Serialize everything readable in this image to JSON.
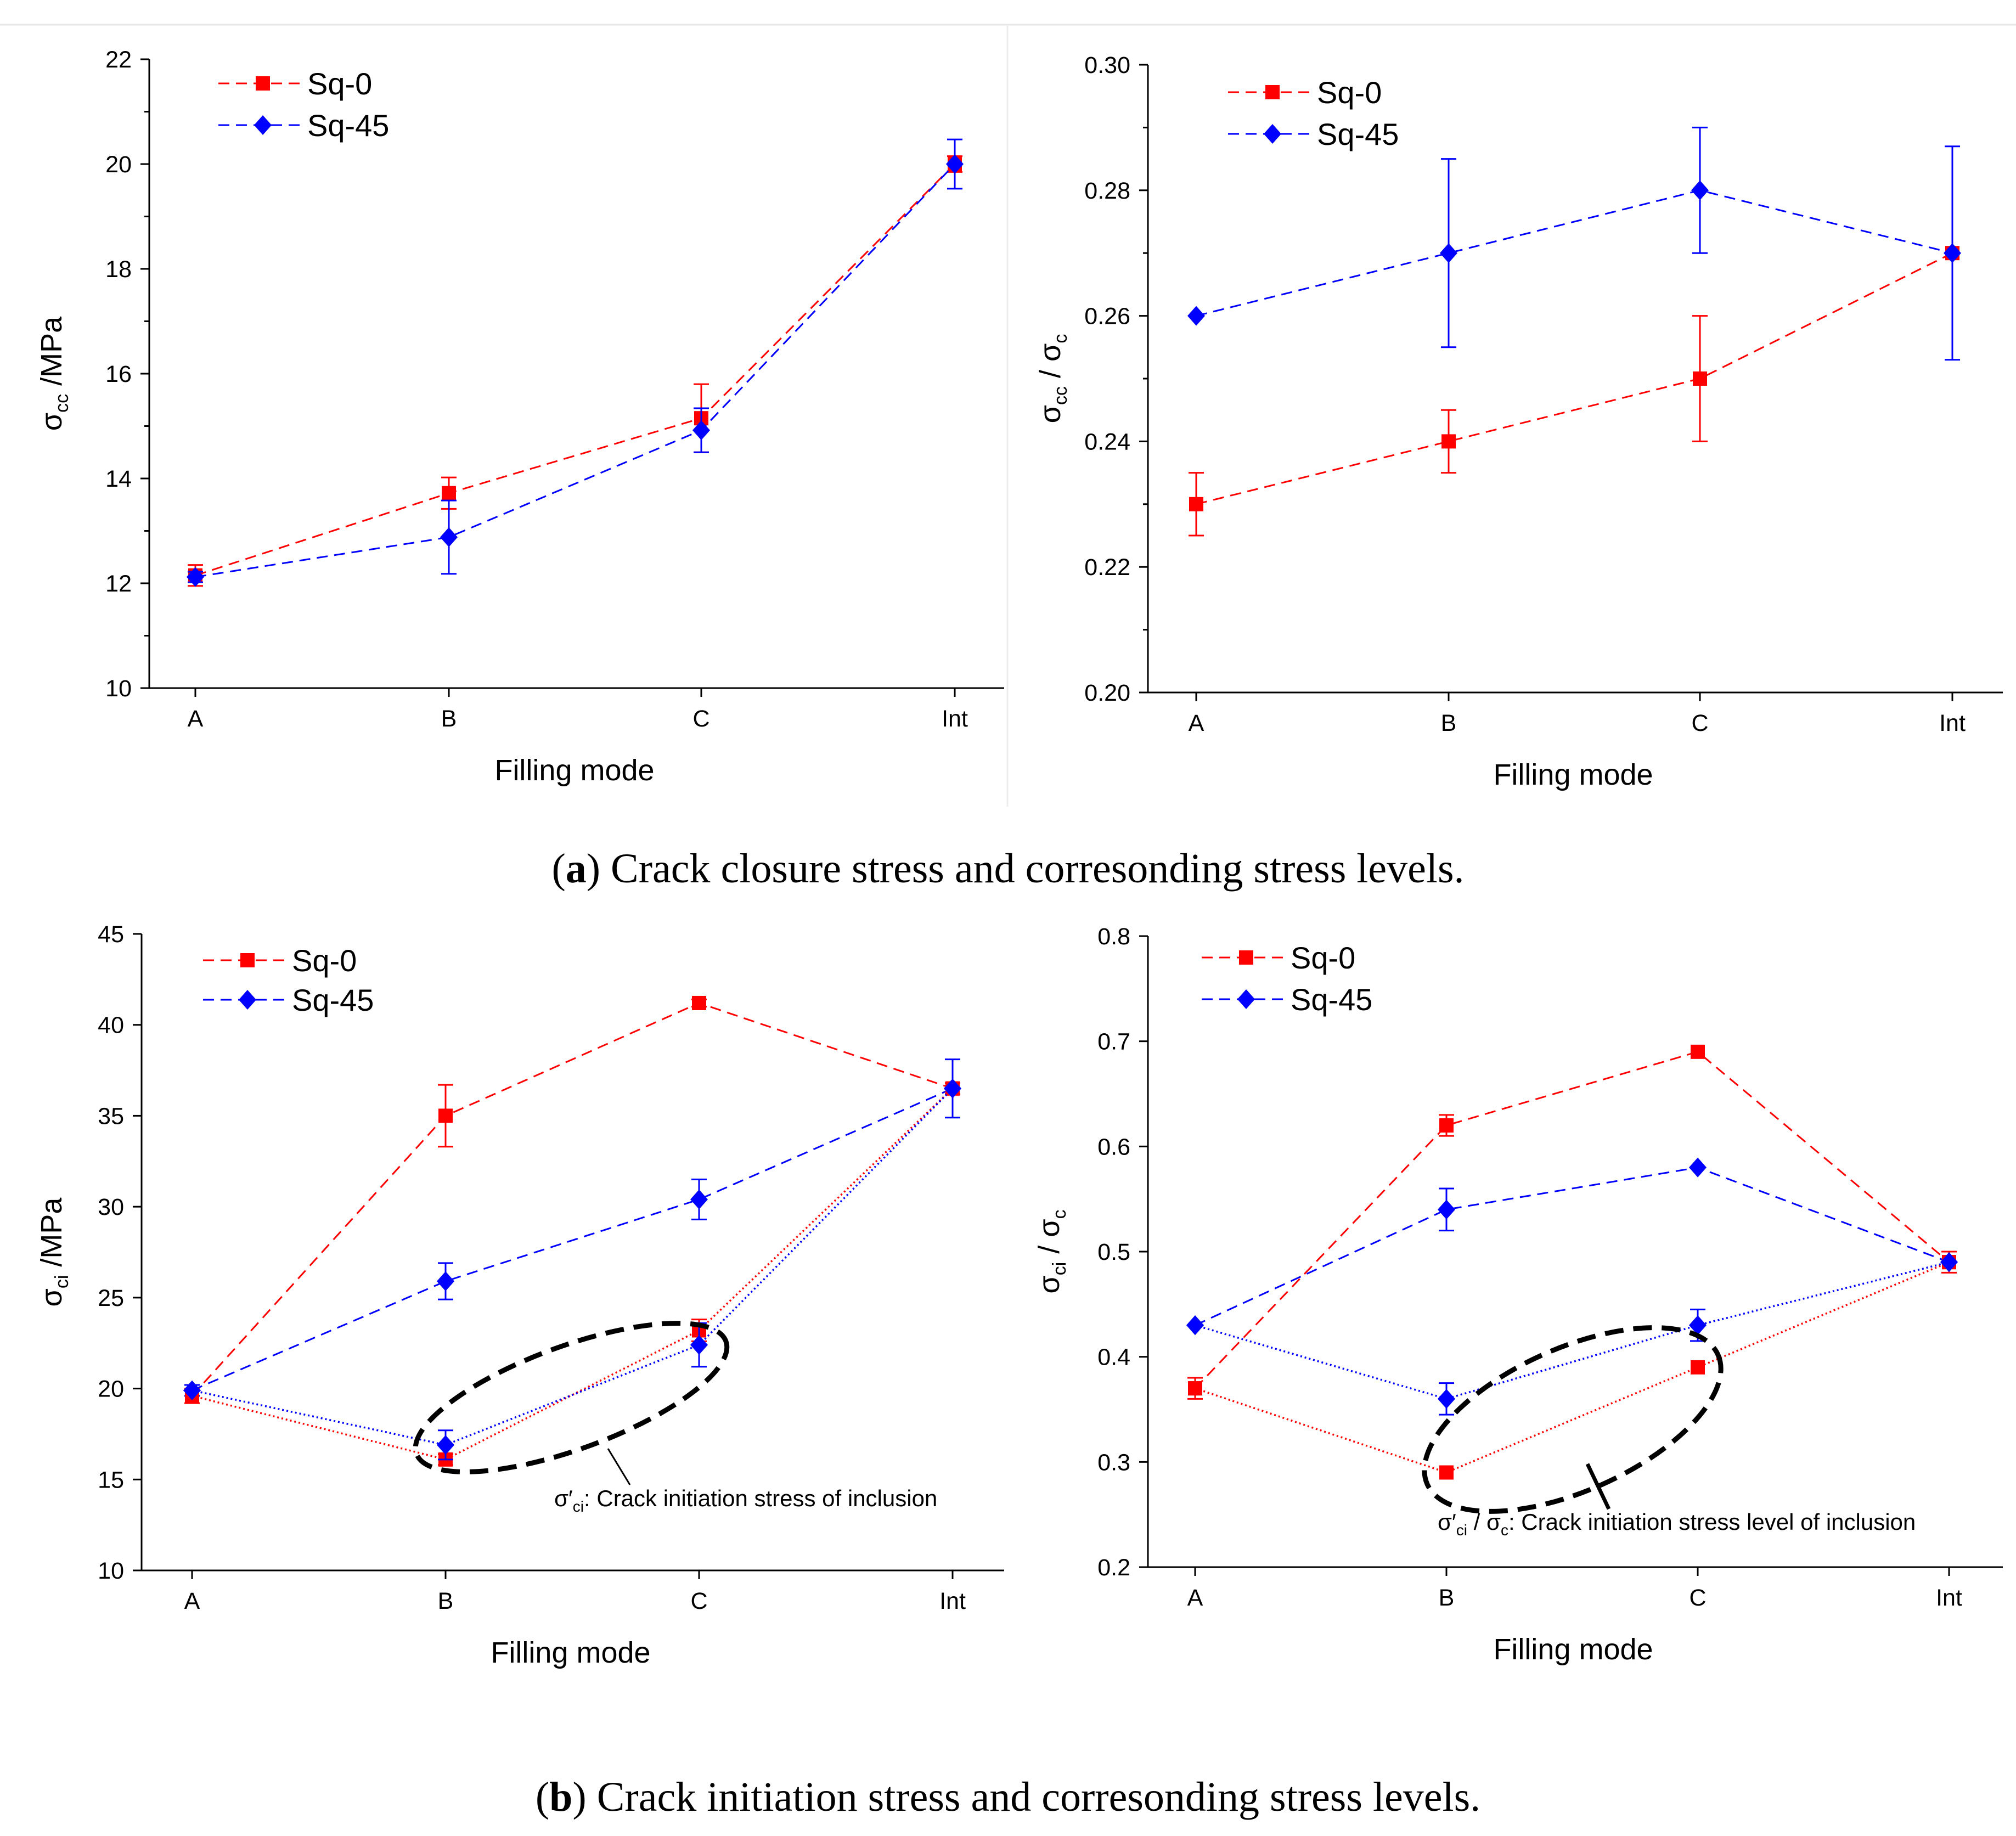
{
  "colors": {
    "Sq-0": "#ff0000",
    "Sq-45": "#0000ff"
  },
  "captions": {
    "a": {
      "letter": "a",
      "text": ") Crack closure stress and corresonding stress levels."
    },
    "b": {
      "letter": "b",
      "text": ") Crack initiation stress and corresonding stress levels."
    }
  },
  "chart_data": [
    {
      "id": "a-left",
      "type": "line",
      "categories": [
        "A",
        "B",
        "C",
        "Int"
      ],
      "xlabel": "Filling mode",
      "ylabel": {
        "main": "σ",
        "sub": "cc",
        "rest": " /MPa"
      },
      "ylim": [
        10,
        22
      ],
      "yticks": [
        "10",
        "12",
        "14",
        "16",
        "18",
        "20",
        "22"
      ],
      "legend_position": "top-left",
      "series": [
        {
          "name": "Sq-0",
          "values": [
            12.15,
            13.72,
            15.15,
            20.0
          ],
          "errors": [
            0.2,
            0.3,
            0.65,
            0.15
          ],
          "style": "dashed",
          "marker": "square",
          "show_in_legend": true
        },
        {
          "name": "Sq-45",
          "values": [
            12.12,
            12.88,
            14.92,
            20.0
          ],
          "errors": [
            0.1,
            0.7,
            0.42,
            0.47
          ],
          "style": "dashed",
          "marker": "diamond",
          "show_in_legend": true
        }
      ],
      "annotation": null
    },
    {
      "id": "a-right",
      "type": "line",
      "categories": [
        "A",
        "B",
        "C",
        "Int"
      ],
      "xlabel": "Filling mode",
      "ylabel": {
        "main": "σ",
        "sub": "cc",
        "rest": " / σ",
        "sub2": "c"
      },
      "ylim": [
        0.2,
        0.3
      ],
      "yticks": [
        "0.20",
        "0.22",
        "0.24",
        "0.26",
        "0.28",
        "0.30"
      ],
      "legend_position": "top-left",
      "series": [
        {
          "name": "Sq-0",
          "values": [
            0.23,
            0.24,
            0.25,
            0.27
          ],
          "errors": [
            0.005,
            0.005,
            0.01,
            0.0
          ],
          "style": "dashed",
          "marker": "square",
          "show_in_legend": true
        },
        {
          "name": "Sq-45",
          "values": [
            0.26,
            0.27,
            0.28,
            0.27
          ],
          "errors": [
            0.0,
            0.015,
            0.01,
            0.017
          ],
          "style": "dashed",
          "marker": "diamond",
          "show_in_legend": true
        }
      ],
      "annotation": null
    },
    {
      "id": "b-left",
      "type": "line",
      "categories": [
        "A",
        "B",
        "C",
        "Int"
      ],
      "xlabel": "Filling mode",
      "ylabel": {
        "main": "σ",
        "sub": "ci",
        "rest": " /MPa"
      },
      "ylim": [
        10,
        45
      ],
      "yticks": [
        "10",
        "15",
        "20",
        "25",
        "30",
        "35",
        "40",
        "45"
      ],
      "legend_position": "top-left",
      "series": [
        {
          "name": "Sq-0",
          "values": [
            19.6,
            35.0,
            41.2,
            36.5
          ],
          "errors": [
            0.4,
            1.7,
            0.2,
            0.3
          ],
          "style": "dashed",
          "marker": "square",
          "show_in_legend": true
        },
        {
          "name": "Sq-45",
          "values": [
            19.9,
            25.9,
            30.4,
            36.5
          ],
          "errors": [
            0.3,
            1.0,
            1.1,
            1.6
          ],
          "style": "dashed",
          "marker": "diamond",
          "show_in_legend": true
        },
        {
          "name": "Sq-0",
          "values": [
            19.6,
            16.1,
            23.2,
            36.5
          ],
          "errors": [
            0.0,
            0.3,
            0.6,
            0.0
          ],
          "style": "dotted",
          "marker": "square",
          "show_in_legend": false
        },
        {
          "name": "Sq-45",
          "values": [
            19.9,
            16.9,
            22.4,
            36.5
          ],
          "errors": [
            0.0,
            0.8,
            1.2,
            0.0
          ],
          "style": "dotted",
          "marker": "diamond",
          "show_in_legend": false
        }
      ],
      "annotation": {
        "sym": "σ′",
        "sub": "ci",
        "text": ": Crack initiation stress of inclusion"
      }
    },
    {
      "id": "b-right",
      "type": "line",
      "categories": [
        "A",
        "B",
        "C",
        "Int"
      ],
      "xlabel": "Filling mode",
      "ylabel": {
        "main": "σ",
        "sub": "ci",
        "rest": " / σ",
        "sub2": "c"
      },
      "ylim": [
        0.2,
        0.8
      ],
      "yticks": [
        "0.2",
        "0.3",
        "0.4",
        "0.5",
        "0.6",
        "0.7",
        "0.8"
      ],
      "legend_position": "top-left",
      "series": [
        {
          "name": "Sq-0",
          "values": [
            0.37,
            0.62,
            0.69,
            0.49
          ],
          "errors": [
            0.01,
            0.01,
            0.0,
            0.01
          ],
          "style": "dashed",
          "marker": "square",
          "show_in_legend": true
        },
        {
          "name": "Sq-45",
          "values": [
            0.43,
            0.54,
            0.58,
            0.49
          ],
          "errors": [
            0.0,
            0.02,
            0.0,
            0.0
          ],
          "style": "dashed",
          "marker": "diamond",
          "show_in_legend": true
        },
        {
          "name": "Sq-0",
          "values": [
            0.37,
            0.29,
            0.39,
            0.49
          ],
          "errors": [
            0.0,
            0.0,
            0.0,
            0.0
          ],
          "style": "dotted",
          "marker": "square",
          "show_in_legend": false
        },
        {
          "name": "Sq-45",
          "values": [
            0.43,
            0.36,
            0.43,
            0.49
          ],
          "errors": [
            0.0,
            0.015,
            0.015,
            0.0
          ],
          "style": "dotted",
          "marker": "diamond",
          "show_in_legend": false
        }
      ],
      "annotation": {
        "sym": "σ′",
        "sub": "ci",
        "text": " / σ",
        "sub2": "c",
        "text2": ": Crack initiation stress level of inclusion"
      }
    }
  ]
}
